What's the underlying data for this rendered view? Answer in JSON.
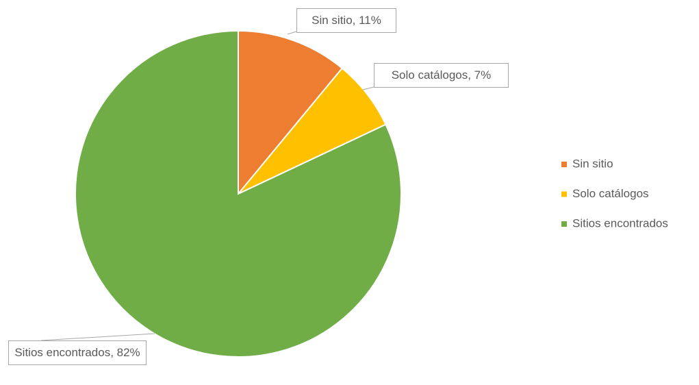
{
  "chart_data": {
    "type": "pie",
    "categories": [
      "Sin sitio",
      "Solo catálogos",
      "Sitios encontrados"
    ],
    "values": [
      11,
      7,
      82
    ],
    "value_labels": [
      "Sin sitio, 11%",
      "Solo catálogos, 7%",
      "Sitios encontrados, 82%"
    ],
    "colors": [
      "#ed7d31",
      "#ffc000",
      "#70ad47"
    ],
    "legend": "right"
  }
}
